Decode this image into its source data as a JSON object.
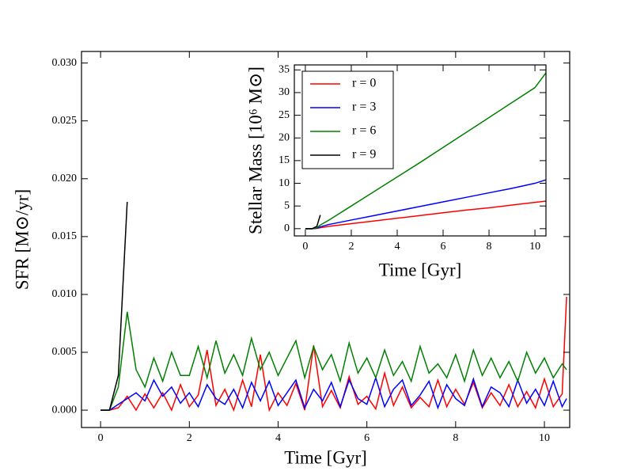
{
  "chart_data": [
    {
      "type": "line",
      "x_label": "Time [Gyr]",
      "y_label": "SFR [M⊙/yr]",
      "xlim": [
        -0.43,
        10.57
      ],
      "ylim": [
        -0.0015,
        0.031
      ],
      "xticks": [
        0,
        2,
        4,
        6,
        8,
        10
      ],
      "yticks": [
        {
          "value": 0,
          "label": "0.000"
        },
        {
          "value": 0.005,
          "label": "0.005"
        },
        {
          "value": 0.01,
          "label": "0.010"
        },
        {
          "value": 0.015,
          "label": "0.015"
        },
        {
          "value": 0.02,
          "label": "0.020"
        },
        {
          "value": 0.025,
          "label": "0.025"
        },
        {
          "value": 0.03,
          "label": "0.030"
        }
      ],
      "x": [
        0,
        0.2,
        0.4,
        0.6,
        0.8,
        1.0,
        1.2,
        1.4,
        1.6,
        1.8,
        2.0,
        2.2,
        2.4,
        2.6,
        2.8,
        3.0,
        3.2,
        3.4,
        3.6,
        3.8,
        4.0,
        4.2,
        4.4,
        4.6,
        4.8,
        5.0,
        5.2,
        5.4,
        5.6,
        5.8,
        6.0,
        6.2,
        6.4,
        6.6,
        6.8,
        7.0,
        7.2,
        7.4,
        7.6,
        7.8,
        8.0,
        8.2,
        8.4,
        8.6,
        8.8,
        9.0,
        9.2,
        9.4,
        9.6,
        9.8,
        10.0,
        10.2,
        10.4,
        10.5
      ],
      "series": [
        {
          "color": "#ff0000",
          "values": [
            0,
            0,
            0.0002,
            0.0012,
            0,
            0.0014,
            0.0002,
            0.0015,
            0,
            0.0022,
            0.0003,
            0.0013,
            0.0052,
            0.0004,
            0.0018,
            0,
            0.0026,
            0.0003,
            0.0048,
            0,
            0.0015,
            0.0004,
            0.0023,
            0,
            0.0056,
            0.0003,
            0.0017,
            0.0002,
            0.0029,
            0.0005,
            0.0012,
            0.0001,
            0.0032,
            0.0004,
            0.002,
            0.0002,
            0.0011,
            0.0003,
            0.0026,
            0.0003,
            0.0018,
            0.0005,
            0.0024,
            0.0002,
            0.0015,
            0.0004,
            0.0022,
            0.0003,
            0.0016,
            0.0002,
            0.0027,
            0.0003,
            0.0014,
            0.0098
          ]
        },
        {
          "color": "#0000ff",
          "values": [
            0,
            0,
            0.0005,
            0.001,
            0.0015,
            0.0008,
            0.0026,
            0.0012,
            0.002,
            0.0006,
            0.0015,
            0.0003,
            0.0022,
            0.001,
            0.0005,
            0.0018,
            0.0002,
            0.0024,
            0.0008,
            0.0025,
            0.0004,
            0.0015,
            0.0026,
            0.0002,
            0.0018,
            0.0008,
            0.0024,
            0.0003,
            0.0026,
            0.001,
            0.0005,
            0.0028,
            0.0003,
            0.0018,
            0.0026,
            0.0004,
            0.0013,
            0.0025,
            0.0002,
            0.0022,
            0.001,
            0.0004,
            0.0027,
            0.0003,
            0.002,
            0.0015,
            0.0003,
            0.0026,
            0.0006,
            0.0018,
            0.0004,
            0.0025,
            0.0003,
            0.001
          ]
        },
        {
          "color": "#008000",
          "values": [
            0,
            0,
            0.002,
            0.0085,
            0.0035,
            0.002,
            0.0045,
            0.0025,
            0.005,
            0.003,
            0.003,
            0.0055,
            0.0028,
            0.006,
            0.0032,
            0.0048,
            0.003,
            0.0062,
            0.0035,
            0.005,
            0.003,
            0.0045,
            0.006,
            0.0028,
            0.0055,
            0.0035,
            0.0048,
            0.0025,
            0.0058,
            0.0032,
            0.0045,
            0.0028,
            0.0052,
            0.003,
            0.0042,
            0.0025,
            0.0055,
            0.0032,
            0.004,
            0.0028,
            0.0048,
            0.0025,
            0.0052,
            0.003,
            0.0045,
            0.0028,
            0.0042,
            0.0025,
            0.005,
            0.0032,
            0.0045,
            0.0028,
            0.004,
            0.0035
          ]
        },
        {
          "color": "#000000",
          "values": [
            0,
            0,
            0.003,
            0.018,
            null,
            null,
            null,
            null,
            null,
            null,
            null,
            null,
            null,
            null,
            null,
            null,
            null,
            null,
            null,
            null,
            null,
            null,
            null,
            null,
            null,
            null,
            null,
            null,
            null,
            null,
            null,
            null,
            null,
            null,
            null,
            null,
            null,
            null,
            null,
            null,
            null,
            null,
            null,
            null,
            null,
            null,
            null,
            null,
            null,
            null,
            null,
            null,
            null,
            null
          ]
        }
      ]
    },
    {
      "type": "line",
      "x_label": "Time [Gyr]",
      "y_label": "Stellar Mass [10⁶ M⊙]",
      "xlim": [
        -0.48,
        10.48
      ],
      "ylim": [
        -1.6,
        36.1
      ],
      "xticks": [
        0,
        2,
        4,
        6,
        8,
        10
      ],
      "yticks": [
        0,
        5,
        10,
        15,
        20,
        25,
        30,
        35
      ],
      "legend": "upper left",
      "x": [
        0,
        0.3,
        0.5,
        0.65,
        1,
        2,
        3,
        4,
        5,
        6,
        7,
        8,
        9,
        10,
        10.5
      ],
      "series": [
        {
          "name": "r = 0",
          "color": "#ff0000",
          "values": [
            0,
            0,
            0.05,
            0.2,
            0.5,
            1.1,
            1.7,
            2.3,
            2.9,
            3.5,
            4.1,
            4.6,
            5.2,
            5.8,
            6.1
          ]
        },
        {
          "name": "r = 3",
          "color": "#0000ff",
          "values": [
            0,
            0,
            0.1,
            0.4,
            0.9,
            1.9,
            2.9,
            3.9,
            4.9,
            5.9,
            6.9,
            7.9,
            8.9,
            10.0,
            10.8
          ]
        },
        {
          "name": "r = 6",
          "color": "#008000",
          "values": [
            0,
            0,
            0.2,
            0.8,
            1.8,
            5.0,
            8.2,
            11.4,
            14.6,
            17.9,
            21.2,
            24.5,
            27.8,
            31.1,
            34.5
          ]
        },
        {
          "name": "r = 9",
          "color": "#000000",
          "values": [
            0,
            0,
            0.5,
            3.0,
            null,
            null,
            null,
            null,
            null,
            null,
            null,
            null,
            null,
            null,
            null
          ]
        }
      ]
    }
  ]
}
